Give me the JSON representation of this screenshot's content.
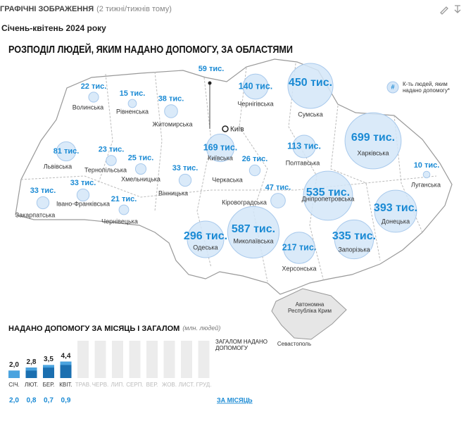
{
  "header": {
    "section": "ГРАФІЧНІ ЗОБРАЖЕННЯ",
    "time": "(2 тижні/тижнів тому)",
    "subtitle": "Січень-квітень 2024 року"
  },
  "map": {
    "title": "РОЗПОДІЛ ЛЮДЕЙ, ЯКИМ НАДАНО ДОПОМОГУ, ЗА ОБЛАСТЯМИ",
    "legend": {
      "symbol": "#",
      "text": "К-ть людей, яким надано допомогу*"
    },
    "city": {
      "name": "Київ",
      "value": 59,
      "value_label": "59 тис."
    },
    "crimea": "Автономна Республіка Крим",
    "sevastopol": "Севастополь",
    "regions": [
      {
        "name": "Волинська",
        "value": 22,
        "value_label": "22 тис."
      },
      {
        "name": "Рівненська",
        "value": 15,
        "value_label": "15 тис."
      },
      {
        "name": "Житомирська",
        "value": 38,
        "value_label": "38 тис."
      },
      {
        "name": "Чернігівська",
        "value": 140,
        "value_label": "140 тис."
      },
      {
        "name": "Сумська",
        "value": 450,
        "value_label": "450 тис."
      },
      {
        "name": "Харківська",
        "value": 699,
        "value_label": "699 тис."
      },
      {
        "name": "Луганська",
        "value": 10,
        "value_label": "10 тис."
      },
      {
        "name": "Львівська",
        "value": 81,
        "value_label": "81 тис."
      },
      {
        "name": "Тернопільська",
        "value": 23,
        "value_label": "23 тис."
      },
      {
        "name": "Хмельницька",
        "value": 25,
        "value_label": "25 тис."
      },
      {
        "name": "Вінницька",
        "value": 33,
        "value_label": "33 тис."
      },
      {
        "name": "Київська",
        "value": 169,
        "value_label": "169 тис."
      },
      {
        "name": "Черкаська",
        "value": 26,
        "value_label": "26 тис."
      },
      {
        "name": "Полтавська",
        "value": 113,
        "value_label": "113 тис."
      },
      {
        "name": "Дніпропетровська",
        "value": 535,
        "value_label": "535 тис."
      },
      {
        "name": "Донецька",
        "value": 393,
        "value_label": "393 тис."
      },
      {
        "name": "Закарпатська",
        "value": 33,
        "value_label": "33 тис."
      },
      {
        "name": "Івано-Франківська",
        "value": 33,
        "value_label": "33 тис."
      },
      {
        "name": "Чернівецька",
        "value": 21,
        "value_label": "21 тис."
      },
      {
        "name": "Кіровоградська",
        "value": 47,
        "value_label": "47 тис."
      },
      {
        "name": "Одеська",
        "value": 296,
        "value_label": "296 тис."
      },
      {
        "name": "Миколаївська",
        "value": 587,
        "value_label": "587 тис."
      },
      {
        "name": "Херсонська",
        "value": 217,
        "value_label": "217 тис."
      },
      {
        "name": "Запорізька",
        "value": 335,
        "value_label": "335 тис."
      }
    ]
  },
  "chart_data": {
    "type": "bar",
    "title": "НАДАНО ДОПОМОГУ ЗА МІСЯЦЬ І ЗАГАЛОМ",
    "unit": "(млн. людей)",
    "categories": [
      "СІЧ.",
      "ЛЮТ.",
      "БЕР.",
      "КВІТ.",
      "ТРАВ.",
      "ЧЕРВ.",
      "ЛИП.",
      "СЕРП.",
      "ВЕР.",
      "ЖОВ.",
      "ЛИСТ.",
      "ГРУД."
    ],
    "ylim": [
      0,
      10
    ],
    "series": [
      {
        "name": "ЗАГАЛОМ НАДАНО ДОПОМОГУ",
        "color": "#1b6fb0",
        "values": [
          2.0,
          2.8,
          3.5,
          4.4,
          null,
          null,
          null,
          null,
          null,
          null,
          null,
          null
        ],
        "value_labels": [
          "2,0",
          "2,8",
          "3,5",
          "4,4",
          null,
          null,
          null,
          null,
          null,
          null,
          null,
          null
        ]
      },
      {
        "name": "ЗА МІСЯЦЬ",
        "color": "#4aa3df",
        "values": [
          2.0,
          0.8,
          0.7,
          0.9,
          null,
          null,
          null,
          null,
          null,
          null,
          null,
          null
        ],
        "value_labels": [
          "2,0",
          "0,8",
          "0,7",
          "0,9",
          null,
          null,
          null,
          null,
          null,
          null,
          null,
          null
        ]
      }
    ]
  }
}
